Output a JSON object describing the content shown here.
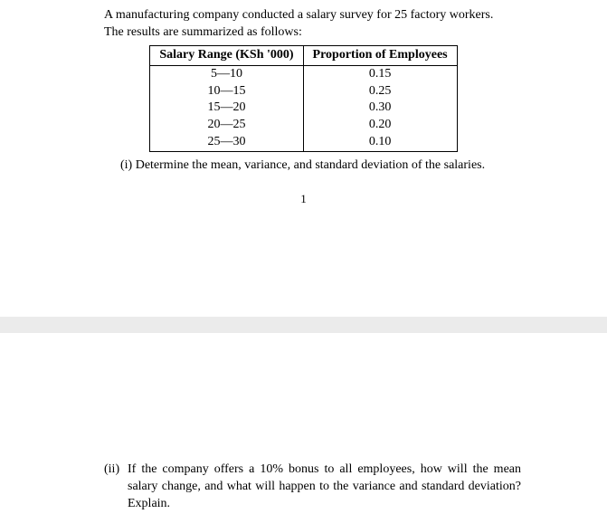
{
  "intro_line1": "A manufacturing company conducted a salary survey for 25 factory workers.",
  "intro_line2": "The results are summarized as follows:",
  "table": {
    "header_col1": "Salary Range (KSh '000)",
    "header_col2": "Proportion of Employees",
    "rows": [
      {
        "range": "5—10",
        "prop": "0.15"
      },
      {
        "range": "10—15",
        "prop": "0.25"
      },
      {
        "range": "15—20",
        "prop": "0.30"
      },
      {
        "range": "20—25",
        "prop": "0.20"
      },
      {
        "range": "25—30",
        "prop": "0.10"
      }
    ]
  },
  "q1_num": "(i)",
  "q1_text": "Determine the mean, variance, and standard deviation of the salaries.",
  "pagenum": "1",
  "q2_num": "(ii)",
  "q2_text": "If the company offers a 10% bonus to all employees, how will the mean salary change, and what will happen to the variance and standard deviation? Explain."
}
